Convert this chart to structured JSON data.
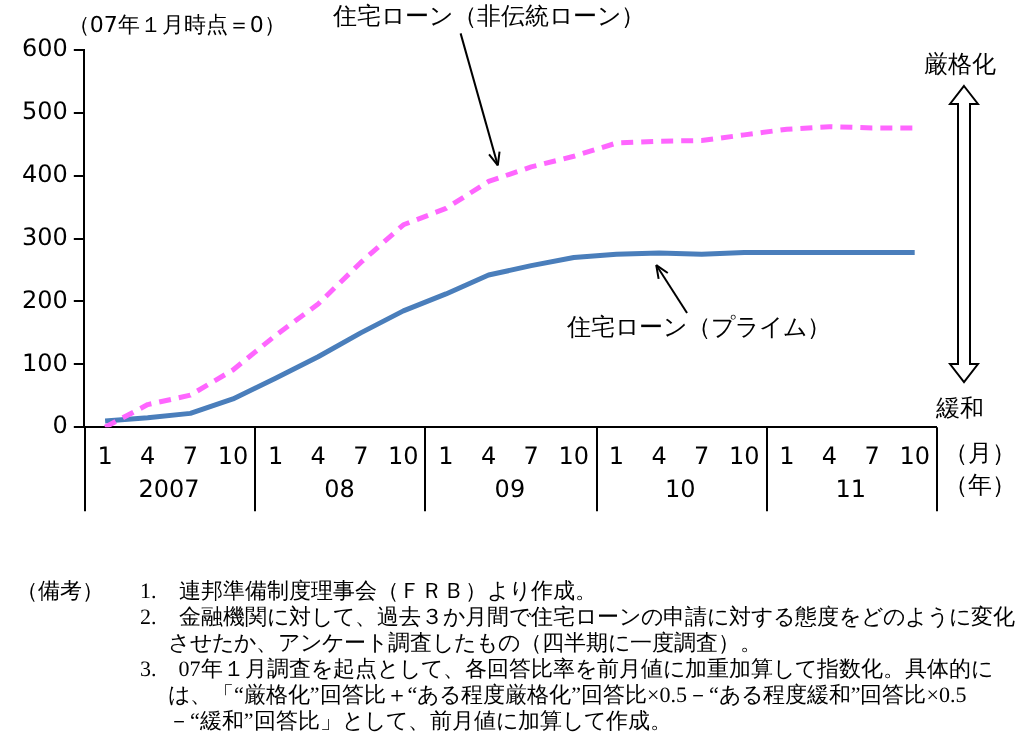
{
  "chart_data": {
    "type": "line",
    "ylabel": "（07年１月時点＝0）",
    "categories": [
      "1",
      "4",
      "7",
      "10",
      "1",
      "4",
      "7",
      "10",
      "1",
      "4",
      "7",
      "10",
      "1",
      "4",
      "7",
      "10",
      "1",
      "4",
      "7",
      "10"
    ],
    "series": [
      {
        "name": "住宅ローン（非伝統ローン）",
        "color": "#ff66ff",
        "line_style": "dashed",
        "values": [
          0,
          36,
          51,
          91,
          146,
          196,
          262,
          322,
          348,
          391,
          414,
          431,
          452,
          455,
          456,
          465,
          474,
          478,
          476,
          476
        ]
      },
      {
        "name": "住宅ローン（プライム）",
        "color": "#4a7ebb",
        "line_style": "solid",
        "values": [
          10,
          15,
          22,
          45,
          78,
          112,
          150,
          185,
          212,
          242,
          257,
          270,
          275,
          277,
          275,
          278,
          278,
          278,
          278,
          278
        ]
      }
    ],
    "ylim": [
      0,
      600
    ],
    "yticks": [
      0,
      100,
      200,
      300,
      400,
      500,
      600
    ],
    "grid": false,
    "legend": false,
    "marker": "none",
    "annotations": [
      "2007",
      "08",
      "09",
      "10",
      "11",
      "（月）",
      "（年）",
      "厳格化",
      "緩和",
      "（備考）",
      "1.　連邦準備制度理事会（ＦＲＢ）より作成。",
      "2.　金融機関に対して、過去３か月間で住宅ローンの申請に対する態度をどのように変化させたか、アンケート調査したもの（四半期に一度調査）。",
      "3.　07年１月調査を起点として、各回答比率を前月値に加重加算して指数化。具体的には、「“厳格化”回答比＋“ある程度厳格化”回答比×0.5－“ある程度緩和”回答比×0.5－“緩和”回答比」として、前月値に加算して作成。"
    ]
  }
}
